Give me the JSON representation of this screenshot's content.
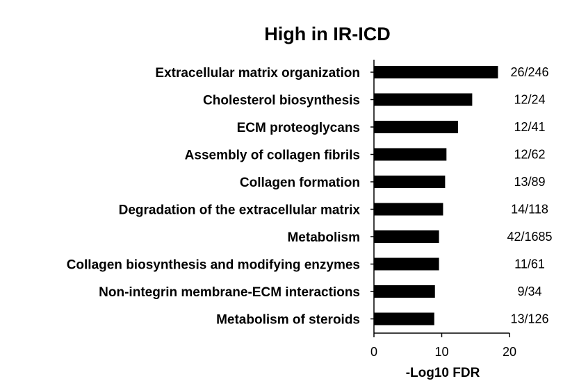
{
  "chart_data": {
    "type": "bar",
    "orientation": "horizontal",
    "title": "High in IR-ICD",
    "xlabel": "-Log10 FDR",
    "ylabel": "",
    "xlim": [
      0,
      20
    ],
    "xticks": [
      0,
      10,
      20
    ],
    "grid": false,
    "legend": "none",
    "bar_color": "#000000",
    "categories": [
      "Extracellular matrix organization",
      "Cholesterol biosynthesis",
      "ECM proteoglycans",
      "Assembly of collagen fibrils",
      "Collagen formation",
      "Degradation of the extracellular matrix",
      "Metabolism",
      "Collagen biosynthesis and modifying enzymes",
      "Non-integrin membrane-ECM interactions",
      "Metabolism of steroids"
    ],
    "values": [
      18.3,
      14.5,
      12.4,
      10.7,
      10.5,
      10.2,
      9.6,
      9.6,
      9.0,
      8.9
    ],
    "annotations": [
      "26/246",
      "12/24",
      "12/41",
      "12/62",
      "13/89",
      "14/118",
      "42/1685",
      "11/61",
      "9/34",
      "13/126"
    ]
  }
}
